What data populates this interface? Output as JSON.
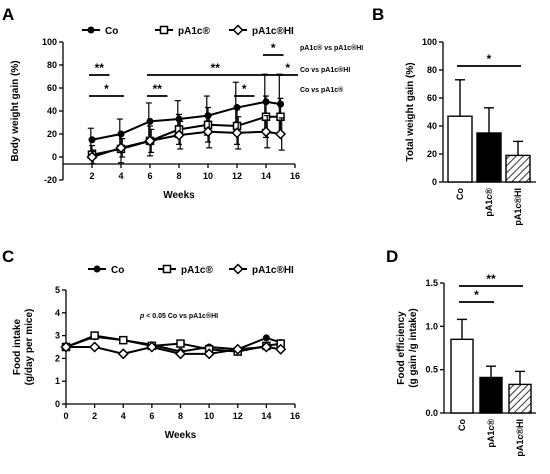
{
  "chart_data": [
    {
      "panel": "A",
      "type": "line",
      "xlabel": "Weeks",
      "ylabel": "Body weight gain (%)",
      "xlim": [
        0,
        16
      ],
      "ylim": [
        -20,
        100
      ],
      "xticks": [
        2,
        4,
        6,
        8,
        10,
        12,
        14,
        16
      ],
      "yticks": [
        -20,
        0,
        20,
        40,
        60,
        80,
        100
      ],
      "series": [
        {
          "name": "Co",
          "marker": "circle",
          "x": [
            2,
            4,
            6,
            8,
            10,
            12,
            14,
            15
          ],
          "y": [
            15,
            20,
            31,
            33,
            36,
            43,
            48,
            46
          ],
          "err": [
            10,
            13,
            16,
            16,
            17,
            22,
            24,
            26
          ]
        },
        {
          "name": "pA1c®",
          "marker": "square",
          "x": [
            2,
            4,
            6,
            8,
            10,
            12,
            14,
            15
          ],
          "y": [
            2,
            7,
            14,
            24,
            28,
            27,
            35,
            35
          ],
          "err": [
            8,
            12,
            13,
            13,
            15,
            16,
            18,
            16
          ]
        },
        {
          "name": "pA1c®HI",
          "marker": "diamond",
          "x": [
            2,
            4,
            6,
            8,
            10,
            12,
            14,
            15
          ],
          "y": [
            0,
            8,
            14,
            19,
            22,
            21,
            22,
            20
          ],
          "err": [
            6,
            8,
            10,
            12,
            14,
            14,
            14,
            14
          ]
        }
      ],
      "annotations": [
        {
          "text": "pA1c® vs pA1c®HI"
        },
        {
          "text": "Co vs pA1c®HI"
        },
        {
          "text": "Co vs pA1c®"
        }
      ],
      "significance": [
        {
          "text": "**",
          "x": [
            2,
            3
          ]
        },
        {
          "text": "*",
          "x": [
            2,
            4
          ]
        },
        {
          "text": "**",
          "x": [
            6,
            7
          ]
        },
        {
          "text": "**",
          "x": [
            6,
            15
          ]
        },
        {
          "text": "*",
          "x": [
            12,
            13
          ]
        },
        {
          "text": "*",
          "x": [
            14,
            15
          ]
        },
        {
          "text": "*",
          "x": [
            15,
            16
          ]
        }
      ]
    },
    {
      "panel": "B",
      "type": "bar",
      "ylabel": "Total weight gain (%)",
      "ylim": [
        0,
        100
      ],
      "yticks": [
        0,
        20,
        40,
        60,
        80,
        100
      ],
      "categories": [
        "Co",
        "pA1c®",
        "pA1c®HI"
      ],
      "values": [
        47,
        35,
        19
      ],
      "errors": [
        26,
        18,
        10
      ],
      "fills": [
        "white",
        "black",
        "hatched"
      ],
      "significance": [
        {
          "text": "*",
          "from": 0,
          "to": 2
        }
      ]
    },
    {
      "panel": "C",
      "type": "line",
      "xlabel": "Weeks",
      "ylabel": "Food intake (g/day per mice)",
      "xlim": [
        0,
        16
      ],
      "ylim": [
        0,
        5
      ],
      "xticks": [
        0,
        2,
        4,
        6,
        8,
        10,
        12,
        14,
        16
      ],
      "yticks": [
        0,
        1,
        2,
        3,
        4,
        5
      ],
      "series": [
        {
          "name": "Co",
          "marker": "circle",
          "x": [
            0,
            2,
            4,
            6,
            8,
            10,
            12,
            14,
            15
          ],
          "y": [
            2.5,
            2.95,
            2.8,
            2.6,
            2.3,
            2.5,
            2.4,
            2.9,
            2.7
          ]
        },
        {
          "name": "pA1c®",
          "marker": "square",
          "x": [
            0,
            2,
            4,
            6,
            8,
            10,
            12,
            14,
            15
          ],
          "y": [
            2.5,
            3.0,
            2.8,
            2.55,
            2.65,
            2.4,
            2.3,
            2.55,
            2.65
          ]
        },
        {
          "name": "pA1c®HI",
          "marker": "diamond",
          "x": [
            0,
            2,
            4,
            6,
            8,
            10,
            12,
            14,
            15
          ],
          "y": [
            2.5,
            2.5,
            2.2,
            2.5,
            2.2,
            2.2,
            2.4,
            2.5,
            2.4
          ]
        }
      ],
      "annotation": {
        "p": "p",
        "rest": " < 0.05 Co vs pA1c®HI"
      }
    },
    {
      "panel": "D",
      "type": "bar",
      "ylabel": "Food efficiency (g gain /g intake)",
      "ylim": [
        0,
        1.5
      ],
      "yticks": [
        0.0,
        0.5,
        1.0,
        1.5
      ],
      "tick_labels": [
        "0.0",
        "0.5",
        "1.0",
        "1.5"
      ],
      "categories": [
        "Co",
        "pA1c®",
        "pA1c®HI"
      ],
      "values": [
        0.85,
        0.41,
        0.33
      ],
      "errors": [
        0.23,
        0.13,
        0.15
      ],
      "fills": [
        "white",
        "black",
        "hatched"
      ],
      "significance": [
        {
          "text": "*",
          "from": 0,
          "to": 1
        },
        {
          "text": "**",
          "from": 0,
          "to": 2
        }
      ]
    }
  ]
}
